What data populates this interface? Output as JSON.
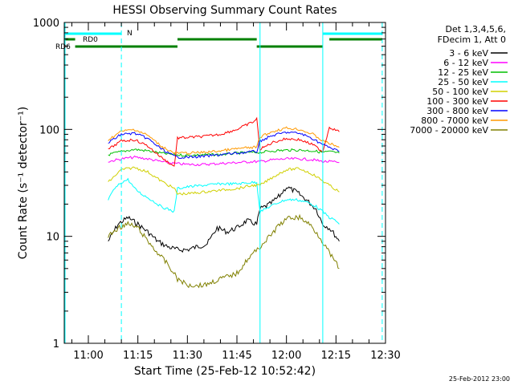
{
  "chart_data": {
    "type": "line",
    "title": "HESSI Observing Summary Count Rates",
    "xlabel": "Start Time (25-Feb-12 10:52:42)",
    "ylabel": "Count Rate (s⁻¹ detector⁻¹)",
    "yscale": "log",
    "ylim": [
      1,
      1000
    ],
    "xlim": [
      "10:52:42",
      "12:30"
    ],
    "x_ticks": [
      "11:00",
      "11:15",
      "11:30",
      "11:45",
      "12:00",
      "12:15",
      "12:30"
    ],
    "y_ticks": [
      "1",
      "10",
      "100",
      "1000"
    ],
    "grid": false,
    "legend_position": "right",
    "legend_header": [
      "Det 1,3,4,5,6,",
      "FDecim 1, Att 0"
    ],
    "footer_timestamp": "25-Feb-2012 23:00",
    "x_unit": "time of day (HH:MM)",
    "series": [
      {
        "name": "3 - 6 keV",
        "color": "#000000",
        "points": [
          [
            "11:06",
            9
          ],
          [
            "11:09",
            13
          ],
          [
            "11:12",
            15
          ],
          [
            "11:15",
            13
          ],
          [
            "11:18",
            11
          ],
          [
            "11:21",
            9
          ],
          [
            "11:24",
            8
          ],
          [
            "11:27",
            7.5
          ],
          [
            "11:30",
            7.5
          ],
          [
            "11:33",
            8
          ],
          [
            "11:36",
            8.5
          ],
          [
            "11:39",
            12
          ],
          [
            "11:42",
            11
          ],
          [
            "11:45",
            12
          ],
          [
            "11:48",
            14
          ],
          [
            "11:51",
            13
          ],
          [
            "11:52",
            18
          ],
          [
            "11:55",
            20
          ],
          [
            "11:58",
            24
          ],
          [
            "12:00",
            29
          ],
          [
            "12:03",
            26
          ],
          [
            "12:06",
            22
          ],
          [
            "12:09",
            18
          ],
          [
            "12:11",
            13
          ],
          [
            "12:13",
            12
          ],
          [
            "12:15",
            10
          ],
          [
            "12:16",
            9
          ]
        ]
      },
      {
        "name": "6 - 12 keV",
        "color": "#ff00ff",
        "points": [
          [
            "11:06",
            50
          ],
          [
            "11:10",
            53
          ],
          [
            "11:14",
            55
          ],
          [
            "11:18",
            53
          ],
          [
            "11:22",
            50
          ],
          [
            "11:26",
            48
          ],
          [
            "11:30",
            47
          ],
          [
            "11:35",
            47
          ],
          [
            "11:40",
            48
          ],
          [
            "11:45",
            49
          ],
          [
            "11:50",
            50
          ],
          [
            "11:52",
            50
          ],
          [
            "11:56",
            52
          ],
          [
            "12:00",
            53
          ],
          [
            "12:04",
            53
          ],
          [
            "12:08",
            52
          ],
          [
            "12:11",
            50
          ],
          [
            "12:13",
            50
          ],
          [
            "12:16",
            49
          ]
        ]
      },
      {
        "name": "12 - 25 keV",
        "color": "#00c000",
        "points": [
          [
            "11:06",
            58
          ],
          [
            "11:10",
            62
          ],
          [
            "11:14",
            65
          ],
          [
            "11:18",
            63
          ],
          [
            "11:22",
            60
          ],
          [
            "11:26",
            58
          ],
          [
            "11:30",
            57
          ],
          [
            "11:35",
            58
          ],
          [
            "11:40",
            58
          ],
          [
            "11:45",
            60
          ],
          [
            "11:50",
            61
          ],
          [
            "11:52",
            61
          ],
          [
            "11:56",
            63
          ],
          [
            "12:00",
            64
          ],
          [
            "12:04",
            64
          ],
          [
            "12:08",
            63
          ],
          [
            "12:11",
            61
          ],
          [
            "12:13",
            62
          ],
          [
            "12:16",
            60
          ]
        ]
      },
      {
        "name": "25 - 50 keV",
        "color": "#00ffff",
        "points": [
          [
            "11:06",
            22
          ],
          [
            "11:08",
            28
          ],
          [
            "11:10",
            32
          ],
          [
            "11:12",
            34
          ],
          [
            "11:14",
            28
          ],
          [
            "11:16",
            25
          ],
          [
            "11:18",
            23
          ],
          [
            "11:20",
            21
          ],
          [
            "11:22",
            19
          ],
          [
            "11:24",
            18
          ],
          [
            "11:26",
            17
          ],
          [
            "11:27",
            28
          ],
          [
            "11:30",
            29
          ],
          [
            "11:35",
            30
          ],
          [
            "11:40",
            31
          ],
          [
            "11:45",
            31
          ],
          [
            "11:50",
            32
          ],
          [
            "11:51",
            32
          ],
          [
            "11:52",
            17
          ],
          [
            "11:55",
            19
          ],
          [
            "11:58",
            21
          ],
          [
            "12:00",
            22
          ],
          [
            "12:03",
            22
          ],
          [
            "12:06",
            21
          ],
          [
            "12:09",
            19
          ],
          [
            "12:11",
            17
          ],
          [
            "12:13",
            15
          ],
          [
            "12:15",
            14
          ],
          [
            "12:16",
            13
          ]
        ]
      },
      {
        "name": "50 - 100 keV",
        "color": "#d0d000",
        "points": [
          [
            "11:06",
            32
          ],
          [
            "11:10",
            42
          ],
          [
            "11:14",
            44
          ],
          [
            "11:18",
            40
          ],
          [
            "11:22",
            33
          ],
          [
            "11:26",
            28
          ],
          [
            "11:27",
            25
          ],
          [
            "11:30",
            25
          ],
          [
            "11:35",
            26
          ],
          [
            "11:40",
            27
          ],
          [
            "11:45",
            28
          ],
          [
            "11:50",
            30
          ],
          [
            "11:51",
            30
          ],
          [
            "11:52",
            30
          ],
          [
            "11:56",
            36
          ],
          [
            "12:00",
            42
          ],
          [
            "12:04",
            43
          ],
          [
            "12:08",
            38
          ],
          [
            "12:11",
            33
          ],
          [
            "12:13",
            30
          ],
          [
            "12:16",
            26
          ]
        ]
      },
      {
        "name": "100 - 300 keV",
        "color": "#ff0000",
        "points": [
          [
            "11:06",
            65
          ],
          [
            "11:10",
            78
          ],
          [
            "11:14",
            80
          ],
          [
            "11:18",
            70
          ],
          [
            "11:22",
            55
          ],
          [
            "11:26",
            45
          ],
          [
            "11:27",
            83
          ],
          [
            "11:30",
            84
          ],
          [
            "11:35",
            86
          ],
          [
            "11:40",
            90
          ],
          [
            "11:45",
            100
          ],
          [
            "11:50",
            118
          ],
          [
            "11:51",
            125
          ],
          [
            "11:52",
            65
          ],
          [
            "11:56",
            76
          ],
          [
            "12:00",
            82
          ],
          [
            "12:04",
            80
          ],
          [
            "12:08",
            72
          ],
          [
            "12:11",
            62
          ],
          [
            "12:13",
            105
          ],
          [
            "12:16",
            95
          ]
        ]
      },
      {
        "name": "300 - 800 keV",
        "color": "#0000ff",
        "points": [
          [
            "11:06",
            75
          ],
          [
            "11:10",
            90
          ],
          [
            "11:14",
            92
          ],
          [
            "11:18",
            82
          ],
          [
            "11:22",
            66
          ],
          [
            "11:26",
            56
          ],
          [
            "11:27",
            55
          ],
          [
            "11:30",
            55
          ],
          [
            "11:35",
            56
          ],
          [
            "11:40",
            58
          ],
          [
            "11:45",
            60
          ],
          [
            "11:50",
            62
          ],
          [
            "11:51",
            62
          ],
          [
            "11:52",
            78
          ],
          [
            "11:56",
            88
          ],
          [
            "12:00",
            94
          ],
          [
            "12:04",
            92
          ],
          [
            "12:08",
            82
          ],
          [
            "12:11",
            72
          ],
          [
            "12:13",
            68
          ],
          [
            "12:16",
            62
          ]
        ]
      },
      {
        "name": "800 - 7000 keV",
        "color": "#ff9900",
        "points": [
          [
            "11:06",
            80
          ],
          [
            "11:10",
            96
          ],
          [
            "11:14",
            100
          ],
          [
            "11:18",
            88
          ],
          [
            "11:22",
            70
          ],
          [
            "11:26",
            60
          ],
          [
            "11:27",
            60
          ],
          [
            "11:30",
            60
          ],
          [
            "11:35",
            61
          ],
          [
            "11:40",
            63
          ],
          [
            "11:45",
            66
          ],
          [
            "11:50",
            68
          ],
          [
            "11:51",
            68
          ],
          [
            "11:52",
            85
          ],
          [
            "11:56",
            96
          ],
          [
            "12:00",
            103
          ],
          [
            "12:04",
            100
          ],
          [
            "12:08",
            90
          ],
          [
            "12:11",
            78
          ],
          [
            "12:13",
            74
          ],
          [
            "12:16",
            68
          ]
        ]
      },
      {
        "name": "7000 - 20000 keV",
        "color": "#808000",
        "points": [
          [
            "11:06",
            10
          ],
          [
            "11:09",
            12
          ],
          [
            "11:12",
            13
          ],
          [
            "11:15",
            12
          ],
          [
            "11:18",
            9
          ],
          [
            "11:21",
            7
          ],
          [
            "11:24",
            5.5
          ],
          [
            "11:27",
            4
          ],
          [
            "11:30",
            3.5
          ],
          [
            "11:35",
            3.5
          ],
          [
            "11:40",
            4
          ],
          [
            "11:45",
            4.5
          ],
          [
            "11:48",
            6
          ],
          [
            "11:52",
            8
          ],
          [
            "11:55",
            10
          ],
          [
            "11:58",
            13
          ],
          [
            "12:01",
            15
          ],
          [
            "12:04",
            15
          ],
          [
            "12:07",
            13
          ],
          [
            "12:10",
            10
          ],
          [
            "12:13",
            7
          ],
          [
            "12:16",
            5
          ]
        ]
      }
    ],
    "bars": {
      "label_n": "N",
      "label_rd0": "RD0",
      "label_rd6": "RD6",
      "night": [
        [
          "10:52:42",
          "11:10"
        ],
        [
          "12:11",
          "12:29"
        ]
      ],
      "rd0": [
        [
          "10:52:42",
          "10:56"
        ],
        [
          "11:27",
          "11:51"
        ],
        [
          "12:13",
          "12:29"
        ]
      ],
      "rd6": [
        [
          "10:56",
          "11:27"
        ],
        [
          "11:51",
          "12:11"
        ]
      ]
    },
    "vlines_solid": [
      "11:52",
      "12:11"
    ],
    "vlines_dashed": [
      "11:10",
      "12:29"
    ],
    "colors": {
      "night": "#00ffff",
      "rd": "#008000",
      "vline": "#00ffff",
      "axis": "#000000"
    }
  }
}
